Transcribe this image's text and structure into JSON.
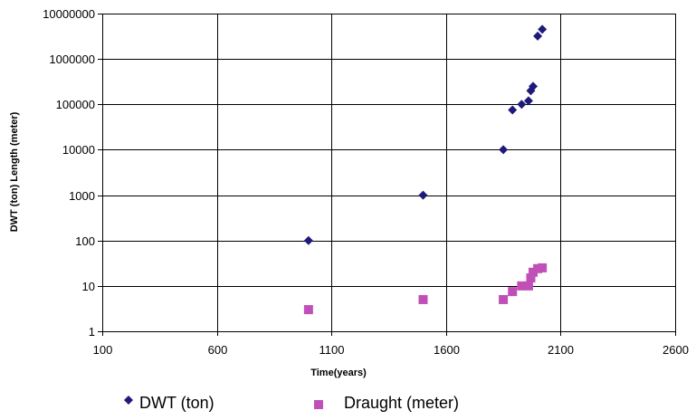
{
  "chart_data": {
    "type": "scatter",
    "title": "",
    "xlabel": "Time(years)",
    "ylabel": "DWT (ton)  Length (meter)",
    "xlim": [
      100,
      2600
    ],
    "ylim": [
      1,
      10000000
    ],
    "y_scale": "log",
    "grid": true,
    "legend_position": "bottom",
    "x_ticks": [
      "100",
      "600",
      "1100",
      "1600",
      "2100",
      "2600"
    ],
    "y_ticks": [
      "1",
      "10",
      "100",
      "1000",
      "10000",
      "100000",
      "1000000",
      "10000000"
    ],
    "series": [
      {
        "name": "DWT (ton)",
        "marker": "diamond",
        "color": "#1f1a7a",
        "points": [
          {
            "x": 1000,
            "y": 100
          },
          {
            "x": 1500,
            "y": 1000
          },
          {
            "x": 1850,
            "y": 10000
          },
          {
            "x": 1890,
            "y": 75000
          },
          {
            "x": 1930,
            "y": 100000
          },
          {
            "x": 1960,
            "y": 120000
          },
          {
            "x": 1970,
            "y": 200000
          },
          {
            "x": 1980,
            "y": 250000
          },
          {
            "x": 2000,
            "y": 3200000
          },
          {
            "x": 2020,
            "y": 4500000
          }
        ]
      },
      {
        "name": "Draught (meter)",
        "marker": "square",
        "color": "#c050b8",
        "points": [
          {
            "x": 1000,
            "y": 3
          },
          {
            "x": 1500,
            "y": 5
          },
          {
            "x": 1850,
            "y": 5
          },
          {
            "x": 1890,
            "y": 7.5
          },
          {
            "x": 1930,
            "y": 10
          },
          {
            "x": 1960,
            "y": 10
          },
          {
            "x": 1970,
            "y": 15
          },
          {
            "x": 1980,
            "y": 20
          },
          {
            "x": 2000,
            "y": 24
          },
          {
            "x": 2020,
            "y": 25
          }
        ]
      }
    ]
  }
}
